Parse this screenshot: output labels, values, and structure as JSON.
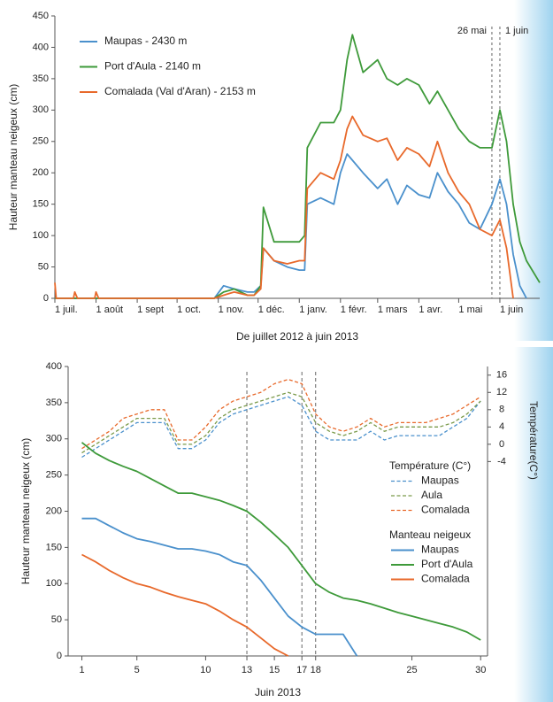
{
  "chart_data": [
    {
      "type": "line",
      "xlabel": "De juillet 2012 à juin 2013",
      "ylabel": "Hauteur manteau neigeux (cm)",
      "xlim": [
        0,
        365
      ],
      "ylim": [
        0,
        450
      ],
      "yticks": [
        0,
        50,
        100,
        150,
        200,
        250,
        300,
        350,
        400,
        450
      ],
      "xticks": [
        {
          "value": 0,
          "label": "1 juil."
        },
        {
          "value": 31,
          "label": "1 août"
        },
        {
          "value": 62,
          "label": "1 sept"
        },
        {
          "value": 92,
          "label": "1 oct."
        },
        {
          "value": 123,
          "label": "1 nov."
        },
        {
          "value": 153,
          "label": "1 déc."
        },
        {
          "value": 184,
          "label": "1 janv."
        },
        {
          "value": 215,
          "label": "1 févr."
        },
        {
          "value": 243,
          "label": "1 mars"
        },
        {
          "value": 274,
          "label": "1 avr."
        },
        {
          "value": 304,
          "label": "1 mai"
        },
        {
          "value": 335,
          "label": "1 juin"
        }
      ],
      "annotations": [
        {
          "x": 329,
          "text": "26 mai"
        },
        {
          "x": 335,
          "text": "1 juin"
        }
      ],
      "legend": "upper left",
      "x": [
        0,
        1,
        3,
        14,
        15,
        17,
        30,
        31,
        33,
        60,
        90,
        120,
        127,
        135,
        145,
        150,
        155,
        157,
        165,
        175,
        184,
        188,
        190,
        200,
        210,
        215,
        220,
        224,
        232,
        243,
        250,
        258,
        265,
        274,
        282,
        288,
        296,
        304,
        312,
        320,
        329,
        335,
        340,
        345,
        350,
        355,
        365
      ],
      "series": [
        {
          "name": "Maupas - 2430 m",
          "color": "#4a90cc",
          "values": [
            0,
            0,
            0,
            0,
            0,
            0,
            0,
            0,
            0,
            0,
            0,
            0,
            20,
            15,
            10,
            10,
            20,
            80,
            60,
            50,
            45,
            45,
            150,
            160,
            150,
            200,
            230,
            220,
            200,
            175,
            190,
            150,
            180,
            165,
            160,
            200,
            170,
            150,
            120,
            110,
            150,
            190,
            150,
            70,
            20,
            0,
            null
          ]
        },
        {
          "name": "Port d'Aula - 2140 m",
          "color": "#3e9a3a",
          "values": [
            0,
            0,
            0,
            0,
            0,
            0,
            0,
            0,
            0,
            0,
            0,
            0,
            10,
            15,
            5,
            5,
            20,
            145,
            90,
            90,
            90,
            100,
            240,
            280,
            280,
            300,
            380,
            420,
            360,
            380,
            350,
            340,
            350,
            340,
            310,
            330,
            300,
            270,
            250,
            240,
            240,
            300,
            250,
            150,
            90,
            60,
            25
          ]
        },
        {
          "name": "Comalada (Val d'Aran) - 2153 m",
          "color": "#e8692b",
          "values": [
            25,
            0,
            0,
            0,
            10,
            0,
            0,
            10,
            0,
            0,
            0,
            0,
            5,
            10,
            5,
            5,
            15,
            80,
            60,
            55,
            60,
            60,
            175,
            200,
            190,
            220,
            270,
            290,
            260,
            250,
            255,
            220,
            240,
            230,
            210,
            250,
            200,
            170,
            150,
            110,
            100,
            125,
            80,
            0,
            null,
            null,
            null
          ]
        }
      ]
    },
    {
      "type": "line",
      "xlabel": "Juin 2013",
      "ylabel": "Hauteur manteau neigeux (cm)",
      "y2label": "Température(C°)",
      "xlim": [
        0,
        30.5
      ],
      "ylim": [
        0,
        400
      ],
      "y2lim": [
        -49,
        18
      ],
      "yticks": [
        0,
        50,
        100,
        150,
        200,
        250,
        300,
        350,
        400
      ],
      "y2ticks": [
        -4,
        0,
        4,
        8,
        12,
        16
      ],
      "xticks": [
        1,
        5,
        10,
        13,
        15,
        17,
        18,
        25,
        30
      ],
      "vlines": [
        13,
        17,
        18
      ],
      "legend": "right",
      "legend_titles": [
        "Température (C°)",
        "Manteau neigeux"
      ],
      "x": [
        1,
        2,
        3,
        4,
        5,
        6,
        7,
        8,
        9,
        10,
        11,
        12,
        13,
        14,
        15,
        16,
        17,
        18,
        19,
        20,
        21,
        22,
        23,
        24,
        25,
        26,
        27,
        28,
        29,
        30
      ],
      "series": [
        {
          "name": "Maupas",
          "color": "#4a90cc",
          "axis": "y2",
          "dashed": true,
          "legend_group": 0,
          "values": [
            -3,
            -1,
            1,
            3,
            5,
            5,
            5,
            -1,
            -1,
            1,
            5,
            7,
            8,
            9,
            10,
            11,
            9,
            3,
            1,
            1,
            1,
            3,
            1,
            2,
            2,
            2,
            2,
            4,
            6,
            10
          ]
        },
        {
          "name": "Aula",
          "color": "#7a9a4a",
          "axis": "y2",
          "dashed": true,
          "legend_group": 0,
          "values": [
            -2,
            0,
            2,
            4,
            6,
            6,
            6,
            0,
            0,
            2,
            6,
            8,
            9,
            10,
            11,
            12,
            11,
            5,
            3,
            2,
            3,
            5,
            3,
            4,
            4,
            4,
            4,
            5,
            7,
            10
          ]
        },
        {
          "name": "Comalada",
          "color": "#e8692b",
          "axis": "y2",
          "dashed": true,
          "legend_group": 0,
          "values": [
            -1,
            1,
            3,
            6,
            7,
            8,
            8,
            1,
            1,
            4,
            8,
            10,
            11,
            12,
            14,
            15,
            14,
            7,
            4,
            3,
            4,
            6,
            4,
            5,
            5,
            5,
            6,
            7,
            9,
            11
          ]
        },
        {
          "name": "Maupas",
          "color": "#4a90cc",
          "legend_group": 1,
          "values": [
            190,
            190,
            180,
            170,
            162,
            158,
            153,
            148,
            148,
            145,
            140,
            130,
            125,
            105,
            80,
            55,
            40,
            30,
            30,
            30,
            0,
            null,
            null,
            null,
            null,
            null,
            null,
            null,
            null,
            null
          ]
        },
        {
          "name": "Port d'Aula",
          "color": "#3e9a3a",
          "legend_group": 1,
          "values": [
            295,
            280,
            270,
            262,
            255,
            245,
            235,
            225,
            225,
            220,
            215,
            208,
            200,
            185,
            168,
            150,
            125,
            100,
            88,
            80,
            77,
            72,
            66,
            60,
            55,
            50,
            45,
            40,
            33,
            22
          ]
        },
        {
          "name": "Comalada",
          "color": "#e8692b",
          "legend_group": 1,
          "values": [
            140,
            130,
            118,
            108,
            100,
            95,
            88,
            82,
            77,
            72,
            62,
            50,
            40,
            25,
            10,
            0,
            null,
            null,
            null,
            null,
            null,
            null,
            null,
            null,
            null,
            null,
            null,
            null,
            null,
            null
          ]
        }
      ]
    }
  ]
}
